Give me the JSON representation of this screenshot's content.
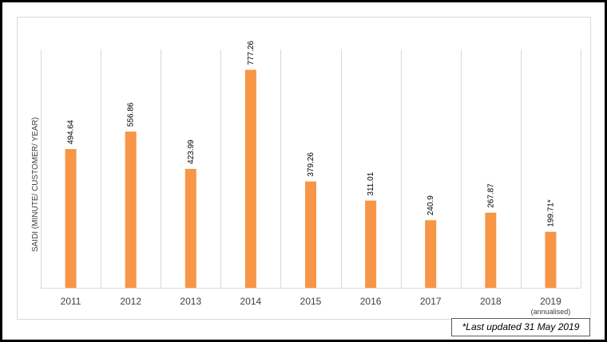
{
  "chart_data": {
    "type": "bar",
    "ylabel": "SAIDI (MINUTE/ CUSTOMER/ YEAR)",
    "categories": [
      "2011",
      "2012",
      "2013",
      "2014",
      "2015",
      "2016",
      "2017",
      "2018",
      "2019"
    ],
    "category_sublabels": [
      "",
      "",
      "",
      "",
      "",
      "",
      "",
      "",
      "(annualised)"
    ],
    "values": [
      494.64,
      556.86,
      423.99,
      777.26,
      379.26,
      311.01,
      240.9,
      267.87,
      199.71
    ],
    "data_labels": [
      "494.64",
      "556.86",
      "423.99",
      "777.26",
      "379.26",
      "311.01",
      "240.9",
      "267.87",
      "199.71*"
    ],
    "ylim": [
      0,
      850
    ],
    "grid": "vertical",
    "bar_color": "#f79646"
  },
  "footnote": "*Last updated 31 May 2019"
}
